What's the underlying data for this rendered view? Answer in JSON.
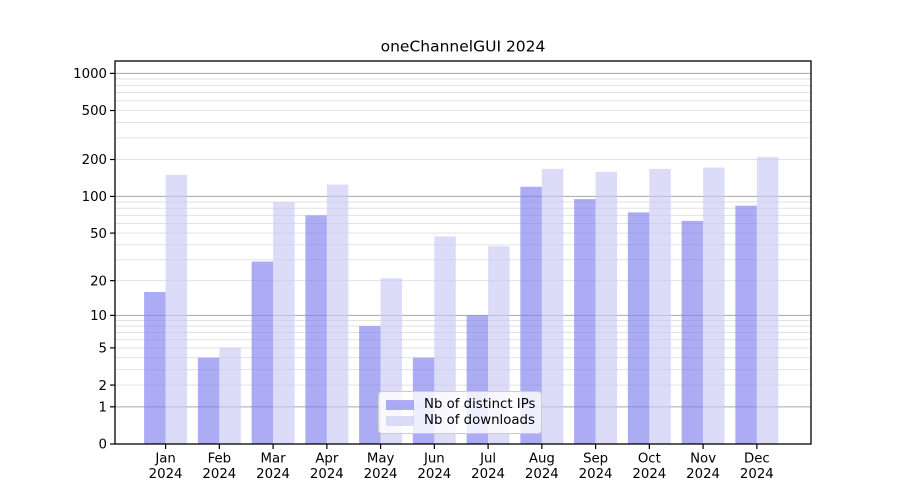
{
  "chart_data": {
    "type": "bar",
    "title": "oneChannelGUI 2024",
    "scale": "log1p",
    "ylim": [
      0,
      1260
    ],
    "grid": {
      "major": [
        1,
        10,
        100,
        1000
      ],
      "minor": [
        2,
        3,
        4,
        5,
        6,
        7,
        8,
        9,
        20,
        30,
        40,
        50,
        60,
        70,
        80,
        90,
        200,
        300,
        400,
        500,
        600,
        700,
        800,
        900
      ]
    },
    "yticks": [
      1000,
      500,
      200,
      100,
      50,
      20,
      10,
      5,
      2,
      1,
      0
    ],
    "categories": [
      "Jan",
      "Feb",
      "Mar",
      "Apr",
      "May",
      "Jun",
      "Jul",
      "Aug",
      "Sep",
      "Oct",
      "Nov",
      "Dec"
    ],
    "year_label": "2024",
    "series": [
      {
        "name": "Nb of distinct IPs",
        "color": "#7f7ff0",
        "values": [
          16,
          4,
          29,
          70,
          8,
          4,
          10,
          120,
          95,
          74,
          63,
          84
        ]
      },
      {
        "name": "Nb of downloads",
        "color": "#cacaf6",
        "values": [
          150,
          5,
          90,
          125,
          21,
          47,
          39,
          168,
          159,
          168,
          172,
          210
        ]
      }
    ],
    "colors": {
      "bar_opacity": 0.65,
      "grid_major": "#a8a8a8",
      "grid_minor": "#e2e2e2",
      "axis": "#000000",
      "legend_border": "#cccccc"
    }
  }
}
